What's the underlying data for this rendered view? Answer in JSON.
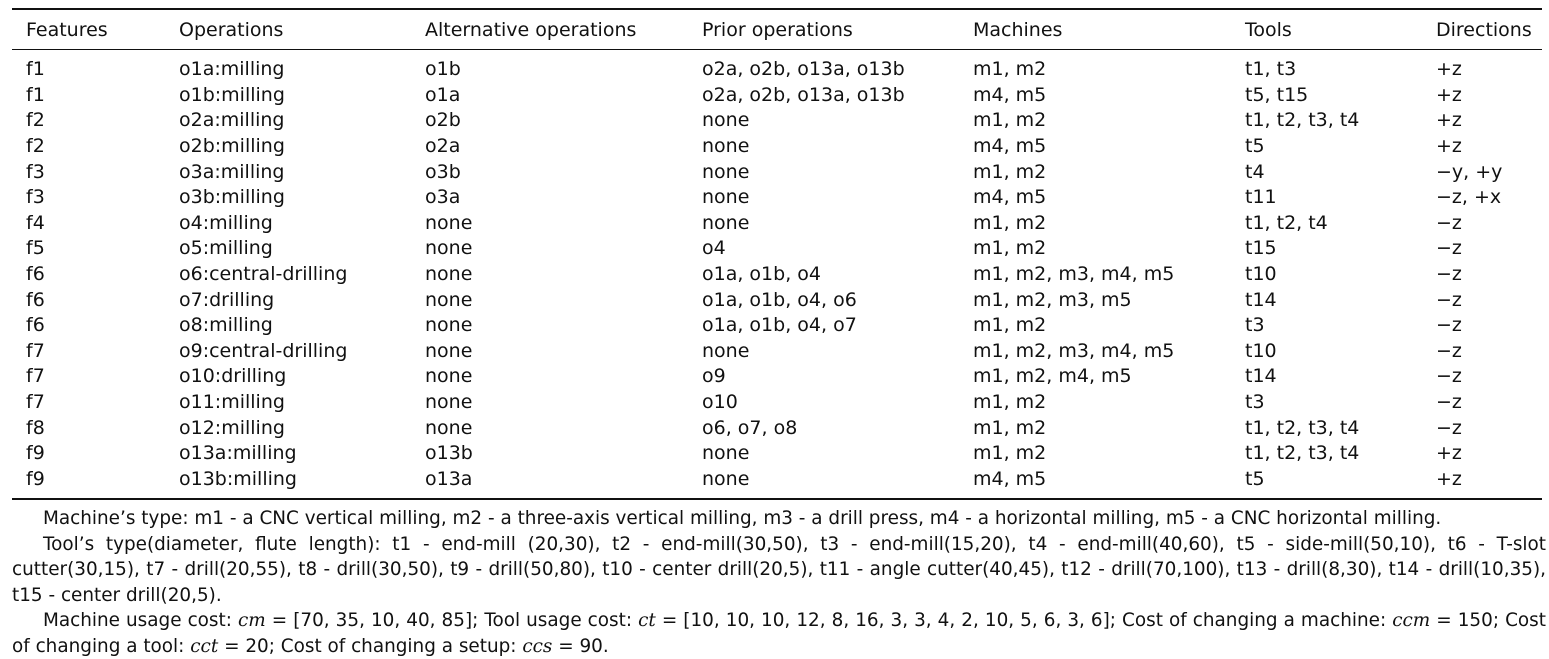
{
  "table": {
    "headers": [
      "Features",
      "Operations",
      "Alternative operations",
      "Prior operations",
      "Machines",
      "Tools",
      "Directions"
    ],
    "rows": [
      [
        "f1",
        "o1a:milling",
        "o1b",
        "o2a, o2b, o13a, o13b",
        "m1, m2",
        "t1, t3",
        "+z"
      ],
      [
        "f1",
        "o1b:milling",
        "o1a",
        "o2a, o2b, o13a, o13b",
        "m4, m5",
        "t5, t15",
        "+z"
      ],
      [
        "f2",
        "o2a:milling",
        "o2b",
        "none",
        "m1, m2",
        "t1, t2, t3, t4",
        "+z"
      ],
      [
        "f2",
        "o2b:milling",
        "o2a",
        "none",
        "m4, m5",
        "t5",
        "+z"
      ],
      [
        "f3",
        "o3a:milling",
        "o3b",
        "none",
        "m1, m2",
        "t4",
        "−y, +y"
      ],
      [
        "f3",
        "o3b:milling",
        "o3a",
        "none",
        "m4, m5",
        "t11",
        "−z, +x"
      ],
      [
        "f4",
        "o4:milling",
        "none",
        "none",
        "m1, m2",
        "t1, t2, t4",
        "−z"
      ],
      [
        "f5",
        "o5:milling",
        "none",
        "o4",
        "m1, m2",
        "t15",
        "−z"
      ],
      [
        "f6",
        "o6:central-drilling",
        "none",
        "o1a, o1b, o4",
        "m1, m2, m3, m4, m5",
        "t10",
        "−z"
      ],
      [
        "f6",
        "o7:drilling",
        "none",
        "o1a, o1b, o4, o6",
        "m1, m2, m3, m5",
        "t14",
        "−z"
      ],
      [
        "f6",
        "o8:milling",
        "none",
        "o1a, o1b, o4, o7",
        "m1, m2",
        "t3",
        "−z"
      ],
      [
        "f7",
        "o9:central-drilling",
        "none",
        "none",
        "m1, m2, m3, m4, m5",
        "t10",
        "−z"
      ],
      [
        "f7",
        "o10:drilling",
        "none",
        "o9",
        "m1, m2, m4, m5",
        "t14",
        "−z"
      ],
      [
        "f7",
        "o11:milling",
        "none",
        "o10",
        "m1, m2",
        "t3",
        "−z"
      ],
      [
        "f8",
        "o12:milling",
        "none",
        "o6, o7, o8",
        "m1, m2",
        "t1, t2, t3, t4",
        "−z"
      ],
      [
        "f9",
        "o13a:milling",
        "o13b",
        "none",
        "m1, m2",
        "t1, t2, t3, t4",
        "+z"
      ],
      [
        "f9",
        "o13b:milling",
        "o13a",
        "none",
        "m4, m5",
        "t5",
        "+z"
      ]
    ]
  },
  "notes": {
    "machine_types": "Machine’s type: m1 - a CNC vertical milling, m2 - a three-axis vertical milling, m3 - a drill press, m4 - a horizontal milling, m5 - a CNC horizontal milling.",
    "tool_types": "Tool’s type(diameter, flute length): t1 - end-mill (20,30), t2 - end-mill(30,50), t3 - end-mill(15,20), t4 - end-mill(40,60), t5 - side-mill(50,10), t6 - T-slot cutter(30,15), t7 - drill(20,55), t8 - drill(30,50), t9 - drill(50,80), t10 - center drill(20,5), t11 - angle cutter(40,45), t12 - drill(70,100), t13 - drill(8,30), t14 - drill(10,35), t15 - center drill(20,5).",
    "costs": {
      "machine_usage_label": "Machine usage cost: ",
      "cm_symbol": "cm",
      "cm_value": " = [70, 35, 10, 40, 85]; ",
      "tool_usage_label": "Tool usage cost: ",
      "ct_symbol": "ct",
      "ct_value": " = [10, 10, 10, 12, 8, 16, 3, 3, 4, 2, 10, 5, 6, 3, 6]; ",
      "ccm_label": "Cost of changing a machine: ",
      "ccm_symbol": "ccm",
      "ccm_value": " = 150; ",
      "cct_label": "Cost of changing a tool: ",
      "cct_symbol": "cct",
      "cct_value": " = 20; ",
      "ccs_label": "Cost of changing a setup: ",
      "ccs_symbol": "ccs",
      "ccs_value": " = 90."
    }
  }
}
